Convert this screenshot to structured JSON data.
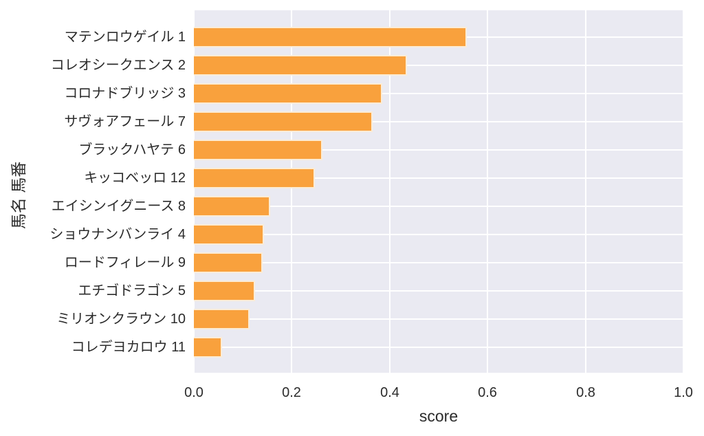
{
  "figure": {
    "background": "#ffffff",
    "plot_background": "#eaeaf2",
    "grid_color": "#ffffff",
    "bar_color": "#f9a13d",
    "bar_edge_color": "#fbecd6",
    "text_color": "#2b2b2b"
  },
  "chart_data": {
    "type": "bar",
    "orientation": "horizontal",
    "xlabel": "score",
    "ylabel": "馬名 馬番",
    "xlim": [
      0.0,
      1.0
    ],
    "xtick_labels": [
      "0.0",
      "0.2",
      "0.4",
      "0.6",
      "0.8",
      "1.0"
    ],
    "xtick_values": [
      0.0,
      0.2,
      0.4,
      0.6,
      0.8,
      1.0
    ],
    "grid": true,
    "legend": false,
    "categories": [
      "マテンロウゲイル 1",
      "コレオシークエンス 2",
      "コロナドブリッジ 3",
      "サヴォアフェール 7",
      "ブラックハヤテ 6",
      "キッコベッロ 12",
      "エイシンイグニース 8",
      "ショウナンバンライ 4",
      "ロードフィレール 9",
      "エチゴドラゴン 5",
      "ミリオンクラウン 10",
      "コレデヨカロウ 11"
    ],
    "values": [
      0.557,
      0.435,
      0.385,
      0.365,
      0.263,
      0.247,
      0.156,
      0.143,
      0.14,
      0.125,
      0.114,
      0.058
    ]
  }
}
